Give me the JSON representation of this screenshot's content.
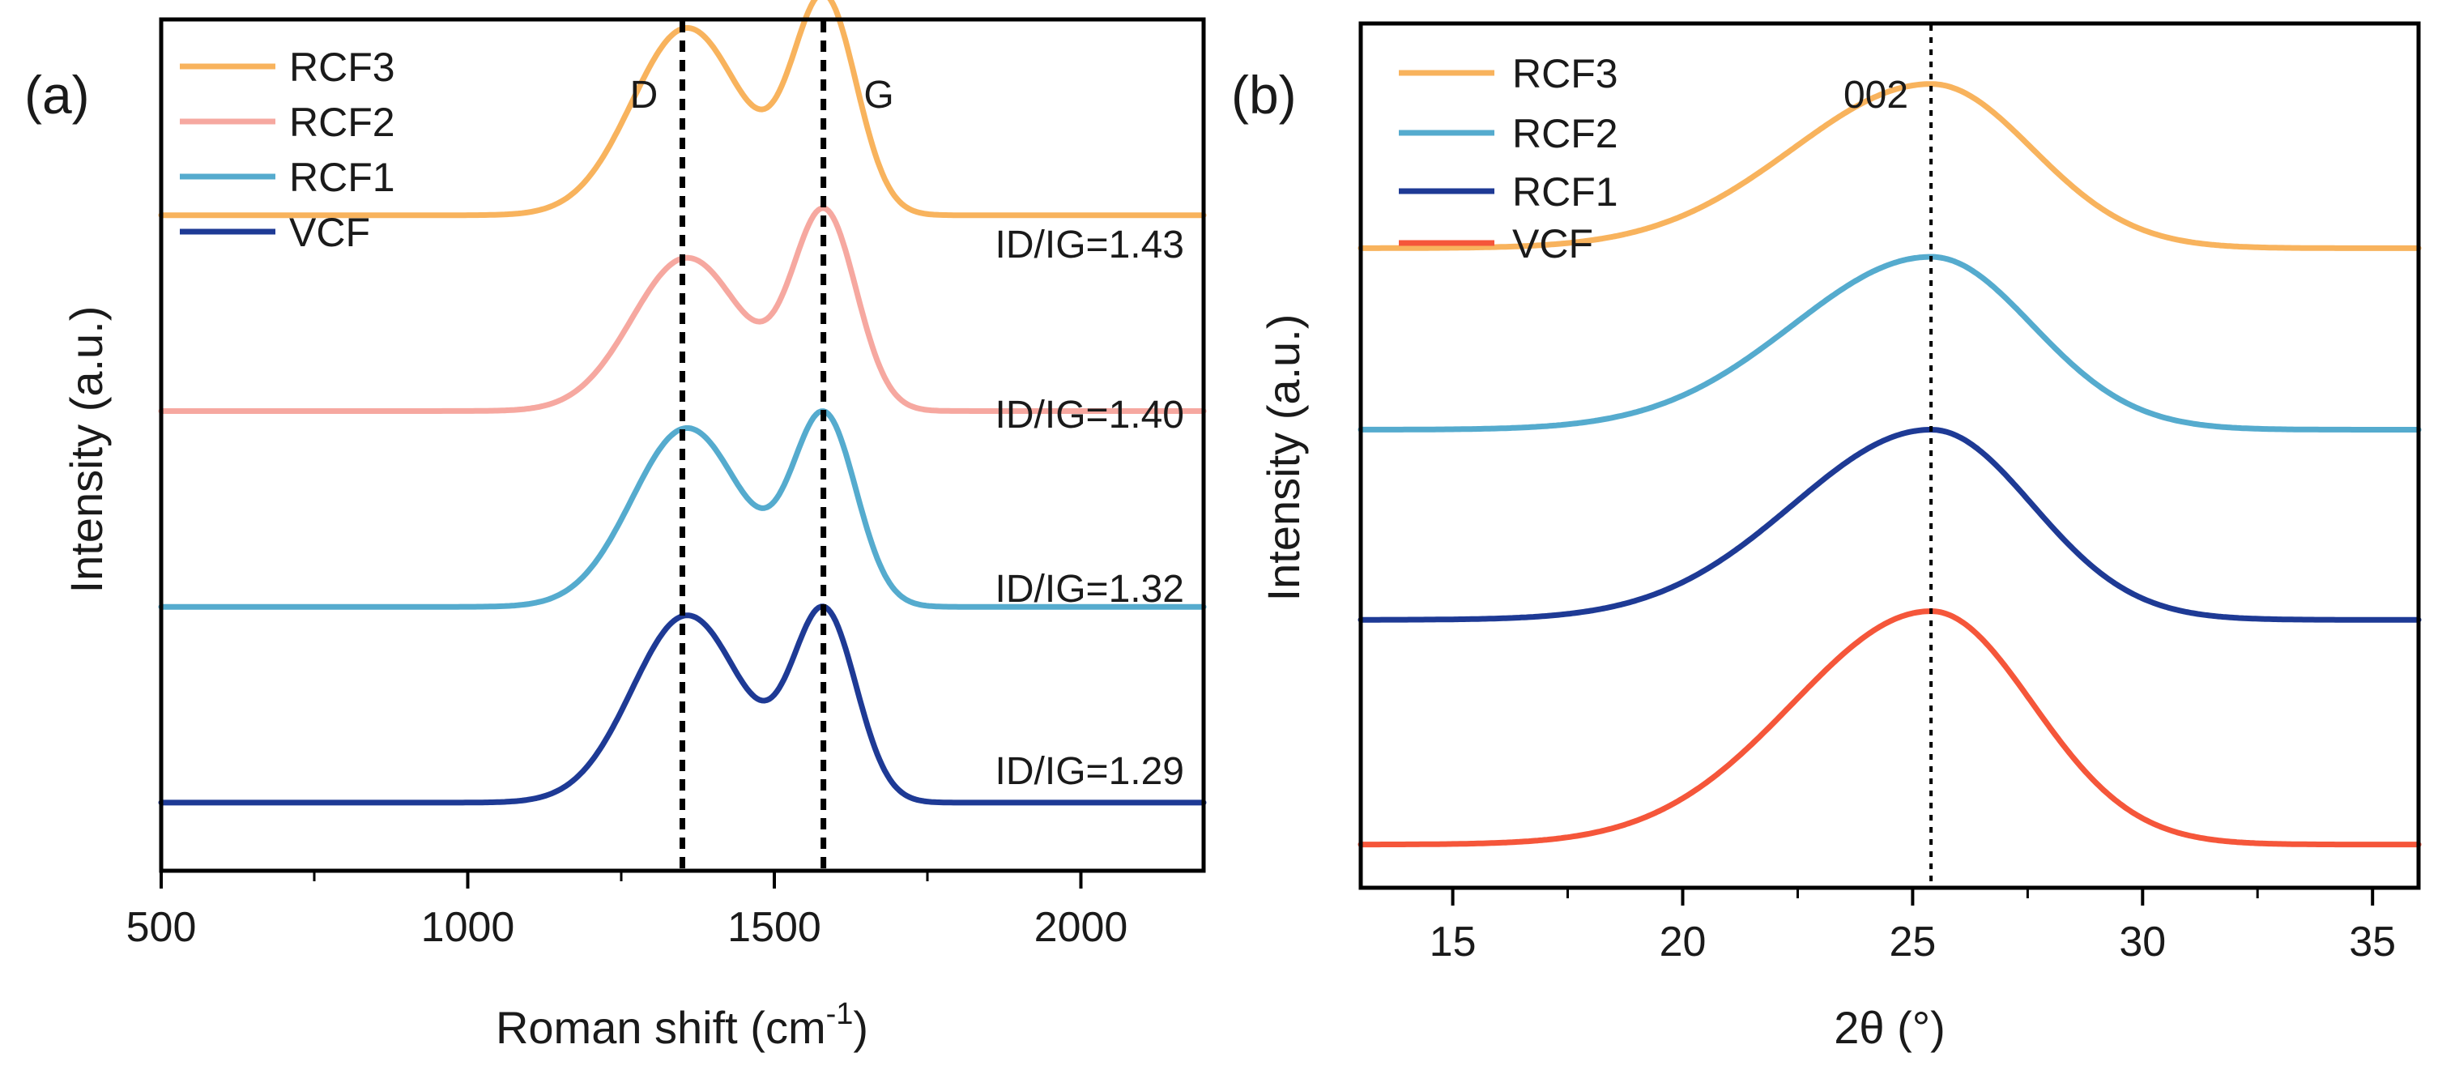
{
  "chart_data": [
    {
      "type": "line",
      "panel_label": "(a)",
      "title": "",
      "xlabel": "Roman shift (cm",
      "xlabel_superscript": "-1",
      "xlabel_suffix": ")",
      "ylabel": "Intensity (a.u.)",
      "xlim": [
        500,
        2200
      ],
      "xticks": [
        500,
        1000,
        1500,
        2000
      ],
      "xtick_labels": [
        "500",
        "1000",
        "1500",
        "2000"
      ],
      "ylim": [
        0,
        100
      ],
      "grid": false,
      "legend_position": "top-left",
      "reference_lines": [
        {
          "label": "D",
          "x": 1350
        },
        {
          "label": "G",
          "x": 1580
        }
      ],
      "series": [
        {
          "name": "RCF3",
          "color": "#F8B35D",
          "baseline": 77,
          "d_peak": 22,
          "g_peak": 25,
          "ratio_label": "ID/IG=1.43"
        },
        {
          "name": "RCF2",
          "color": "#F6A8A0",
          "baseline": 54,
          "d_peak": 18,
          "g_peak": 23,
          "ratio_label": "ID/IG=1.40"
        },
        {
          "name": "RCF1",
          "color": "#55ABCE",
          "baseline": 31,
          "d_peak": 21,
          "g_peak": 22,
          "ratio_label": "ID/IG=1.32"
        },
        {
          "name": "VCF",
          "color": "#1E3A95",
          "baseline": 8,
          "d_peak": 22,
          "g_peak": 22,
          "ratio_label": "ID/IG=1.29"
        }
      ]
    },
    {
      "type": "line",
      "panel_label": "(b)",
      "title": "",
      "xlabel": "2θ (°)",
      "ylabel": "Intensity (a.u.)",
      "xlim": [
        13,
        36
      ],
      "xticks": [
        15,
        20,
        25,
        30,
        35
      ],
      "xtick_labels": [
        "15",
        "20",
        "25",
        "30",
        "35"
      ],
      "ylim": [
        0,
        100
      ],
      "grid": false,
      "legend_position": "top-left",
      "reference_lines": [
        {
          "label": "002",
          "x": 25.4
        }
      ],
      "series": [
        {
          "name": "RCF3",
          "color": "#F8B35D",
          "baseline": 74,
          "peak_height": 19,
          "peak_x": 25.4
        },
        {
          "name": "RCF2",
          "color": "#55ABCE",
          "baseline": 53,
          "peak_height": 20,
          "peak_x": 25.4
        },
        {
          "name": "RCF1",
          "color": "#1E3A95",
          "baseline": 31,
          "peak_height": 22,
          "peak_x": 25.4
        },
        {
          "name": "VCF",
          "color": "#F5563A",
          "baseline": 5,
          "peak_height": 27,
          "peak_x": 25.4
        }
      ]
    }
  ]
}
